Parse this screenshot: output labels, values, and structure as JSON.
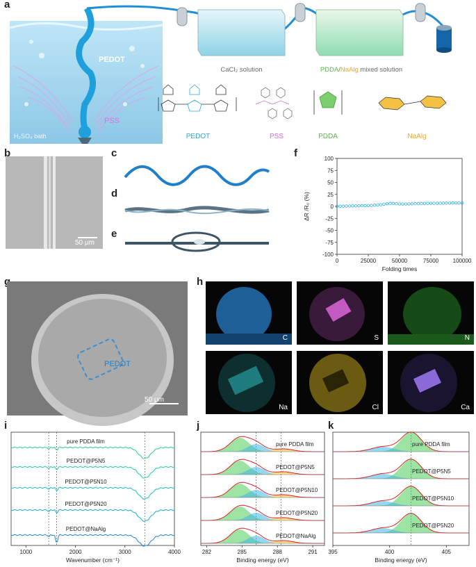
{
  "panel_labels": {
    "a": "a",
    "b": "b",
    "c": "c",
    "d": "d",
    "e": "e",
    "f": "f",
    "g": "g",
    "h": "h",
    "i": "i",
    "j": "j",
    "k": "k"
  },
  "panel_a": {
    "pedot_label": "PEDOT",
    "pss_label": "PSS",
    "bath_label": "H₂SO₄ bath",
    "cacl2_caption": "CaCl₂ solution",
    "mixed_caption_pdda": "PDDA",
    "mixed_caption_sep": "/",
    "mixed_caption_naalg": "NaAlg",
    "mixed_caption_rest": " mixed solution",
    "chem_names": [
      "PEDOT",
      "PSS",
      "PDDA",
      "NaAlg"
    ]
  },
  "panel_b": {
    "scale": "50 μm"
  },
  "panel_g": {
    "pedot_label": "PEDOT",
    "scale": "50 μm"
  },
  "panel_h": {
    "elements": [
      "C",
      "S",
      "N",
      "Na",
      "Cl",
      "Ca"
    ]
  },
  "colors": {
    "pedot_blue": "#2aa7dc",
    "pss_pink": "#d66ad6",
    "pdda_green": "#58b848",
    "naalg_orange": "#f0a82a",
    "fiber_blue": "#1f7fc8"
  },
  "chart_data": [
    {
      "panel": "f",
      "type": "scatter",
      "xlabel": "Folding times",
      "ylabel": "ΔR /R₀ (%)",
      "xlim": [
        0,
        100000
      ],
      "ylim": [
        -100,
        100
      ],
      "xticks": [
        "0",
        "25000",
        "50000",
        "75000",
        "100000"
      ],
      "yticks": [
        "100",
        "75",
        "50",
        "25",
        "0",
        "-25",
        "-50",
        "-75",
        "-100"
      ],
      "x": [
        0,
        2500,
        5000,
        7500,
        10000,
        12500,
        15000,
        17500,
        20000,
        22500,
        25000,
        27500,
        30000,
        32500,
        35000,
        37500,
        40000,
        42500,
        45000,
        47500,
        50000,
        52500,
        55000,
        57500,
        60000,
        62500,
        65000,
        67500,
        70000,
        72500,
        75000,
        77500,
        80000,
        82500,
        85000,
        87500,
        90000,
        92500,
        95000,
        97500,
        100000
      ],
      "y": [
        0,
        0.3,
        0.5,
        0.6,
        0.8,
        1,
        1,
        1.2,
        1.3,
        1.5,
        1.6,
        2,
        2.5,
        3,
        3.5,
        4.5,
        5.5,
        6,
        6,
        5.5,
        5,
        5,
        5,
        5.2,
        5.3,
        5.5,
        5.8,
        6,
        6.2,
        6.3,
        6.5,
        6.5,
        6.5,
        6.6,
        6.7,
        6.8,
        6.8,
        6.9,
        7,
        7,
        7
      ]
    },
    {
      "panel": "i",
      "type": "line",
      "xlabel": "Wavenumber (cm⁻¹)",
      "ylabel": "",
      "xlim": [
        700,
        4000
      ],
      "xticks": [
        "1000",
        "2000",
        "3000",
        "4000"
      ],
      "series": [
        {
          "name": "pure PDDA film",
          "values": []
        },
        {
          "name": "PEDOT@P5N5",
          "values": []
        },
        {
          "name": "PEDOT@P5N10",
          "values": []
        },
        {
          "name": "PEDOT@P5N20",
          "values": []
        },
        {
          "name": "PEDOT@NaAlg",
          "values": []
        }
      ],
      "reference_lines": [
        1460,
        1620,
        3400
      ]
    },
    {
      "panel": "j",
      "type": "line",
      "xlabel": "Binding energy (eV)",
      "xlim": [
        281.5,
        292
      ],
      "xticks": [
        "282",
        "285",
        "288",
        "291"
      ],
      "series": [
        {
          "name": "pure PDDA film"
        },
        {
          "name": "PEDOT@P5N5"
        },
        {
          "name": "PEDOT@P5N10"
        },
        {
          "name": "PEDOT@P5N20"
        },
        {
          "name": "PEDOT@NaAlg"
        }
      ],
      "reference_lines": [
        286.2,
        288.3
      ]
    },
    {
      "panel": "k",
      "type": "line",
      "xlabel": "Binding energy (eV)",
      "xlim": [
        395,
        407
      ],
      "xticks": [
        "395",
        "400",
        "405"
      ],
      "series": [
        {
          "name": "pure PDDA film"
        },
        {
          "name": "PEDOT@P5N5"
        },
        {
          "name": "PEDOT@P5N10"
        },
        {
          "name": "PEDOT@P5N20"
        }
      ],
      "reference_lines": [
        401.9
      ]
    }
  ]
}
